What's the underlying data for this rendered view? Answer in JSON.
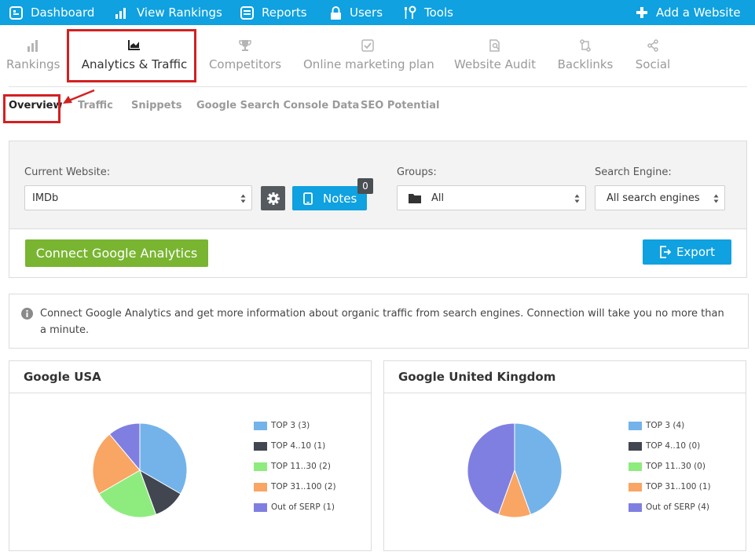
{
  "topnav": {
    "dashboard": "Dashboard",
    "view_rankings": "View Rankings",
    "reports": "Reports",
    "users": "Users",
    "tools": "Tools",
    "add_website": "Add a Website"
  },
  "tabs": [
    {
      "label": "Rankings",
      "icon": "bar-chart-icon"
    },
    {
      "label": "Analytics & Traffic",
      "icon": "area-chart-icon",
      "active": true
    },
    {
      "label": "Competitors",
      "icon": "trophy-icon"
    },
    {
      "label": "Online marketing plan",
      "icon": "checkbox-icon"
    },
    {
      "label": "Website Audit",
      "icon": "document-search-icon"
    },
    {
      "label": "Backlinks",
      "icon": "link-icon"
    },
    {
      "label": "Social",
      "icon": "share-icon"
    }
  ],
  "subtabs": [
    "Overview",
    "Traffic",
    "Snippets",
    "Google Search Console Data",
    "SEO Potential"
  ],
  "filters": {
    "current_website_label": "Current Website:",
    "current_website_value": "IMDb",
    "notes_label": "Notes",
    "notes_count": "0",
    "groups_label": "Groups:",
    "groups_value": "All",
    "search_engine_label": "Search Engine:",
    "search_engine_value": "All search engines"
  },
  "actions": {
    "connect_ga": "Connect Google Analytics",
    "export": "Export"
  },
  "info_text": "Connect Google Analytics and get more information about organic traffic from search engines. Connection will take you no more than a minute.",
  "colors": {
    "accent": "#0fa1e0",
    "green": "#79b531",
    "highlight": "#d42020"
  },
  "chart_data": [
    {
      "type": "pie",
      "title": "Google USA",
      "categories": [
        "TOP 3",
        "TOP 4..10",
        "TOP 11..30",
        "TOP 31..100",
        "Out of SERP"
      ],
      "values": [
        3,
        1,
        2,
        2,
        1
      ],
      "legend": [
        "TOP 3 (3)",
        "TOP 4..10 (1)",
        "TOP 11..30 (2)",
        "TOP 31..100 (2)",
        "Out of SERP (1)"
      ],
      "colors": [
        "#73b3ea",
        "#414650",
        "#8eec7e",
        "#f9a564",
        "#7f7fe2"
      ]
    },
    {
      "type": "pie",
      "title": "Google United Kingdom",
      "categories": [
        "TOP 3",
        "TOP 4..10",
        "TOP 11..30",
        "TOP 31..100",
        "Out of SERP"
      ],
      "values": [
        4,
        0,
        0,
        1,
        4
      ],
      "legend": [
        "TOP 3 (4)",
        "TOP 4..10 (0)",
        "TOP 11..30 (0)",
        "TOP 31..100 (1)",
        "Out of SERP (4)"
      ],
      "colors": [
        "#73b3ea",
        "#414650",
        "#8eec7e",
        "#f9a564",
        "#7f7fe2"
      ]
    }
  ]
}
